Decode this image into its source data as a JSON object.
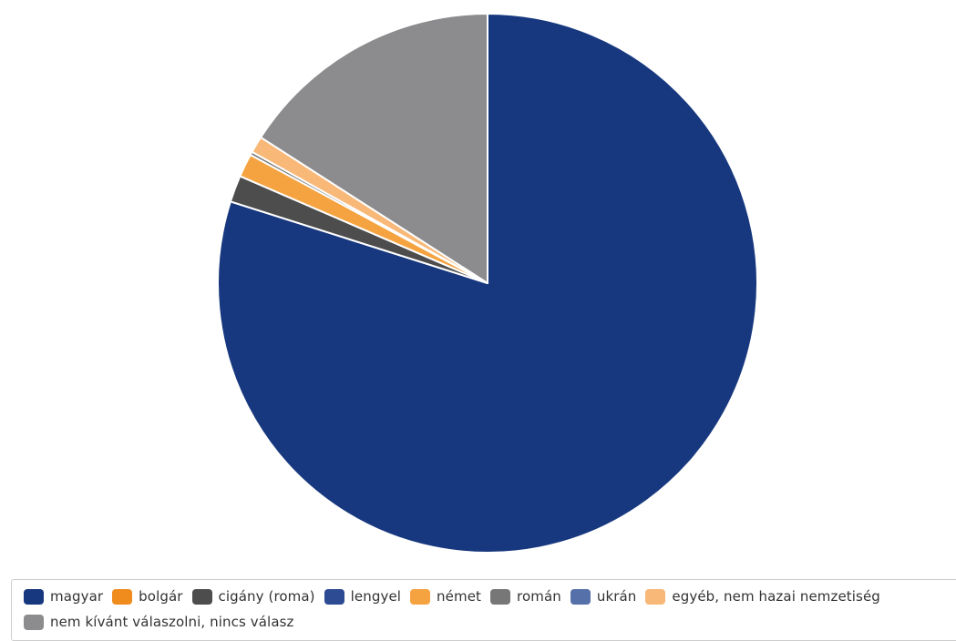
{
  "chart_data": {
    "type": "pie",
    "start_angle_deg": 0,
    "direction": "clockwise",
    "legend_position": "bottom",
    "slices": [
      {
        "label": "magyar",
        "value": 79.9,
        "color": "#17387e"
      },
      {
        "label": "bolgár",
        "value": 0.0,
        "color": "#f08c1e"
      },
      {
        "label": "cigány (roma)",
        "value": 1.6,
        "color": "#4d4d4d"
      },
      {
        "label": "lengyel",
        "value": 0.0,
        "color": "#2c4b93"
      },
      {
        "label": "német",
        "value": 1.4,
        "color": "#f5a340"
      },
      {
        "label": "román",
        "value": 0.2,
        "color": "#777777"
      },
      {
        "label": "ukrán",
        "value": 0.0,
        "color": "#5670aa"
      },
      {
        "label": "egyéb, nem hazai nemzetiség",
        "value": 1.0,
        "color": "#f8b878"
      },
      {
        "label": "nem kívánt válaszolni, nincs válasz",
        "value": 15.9,
        "color": "#8c8c8e"
      }
    ]
  }
}
